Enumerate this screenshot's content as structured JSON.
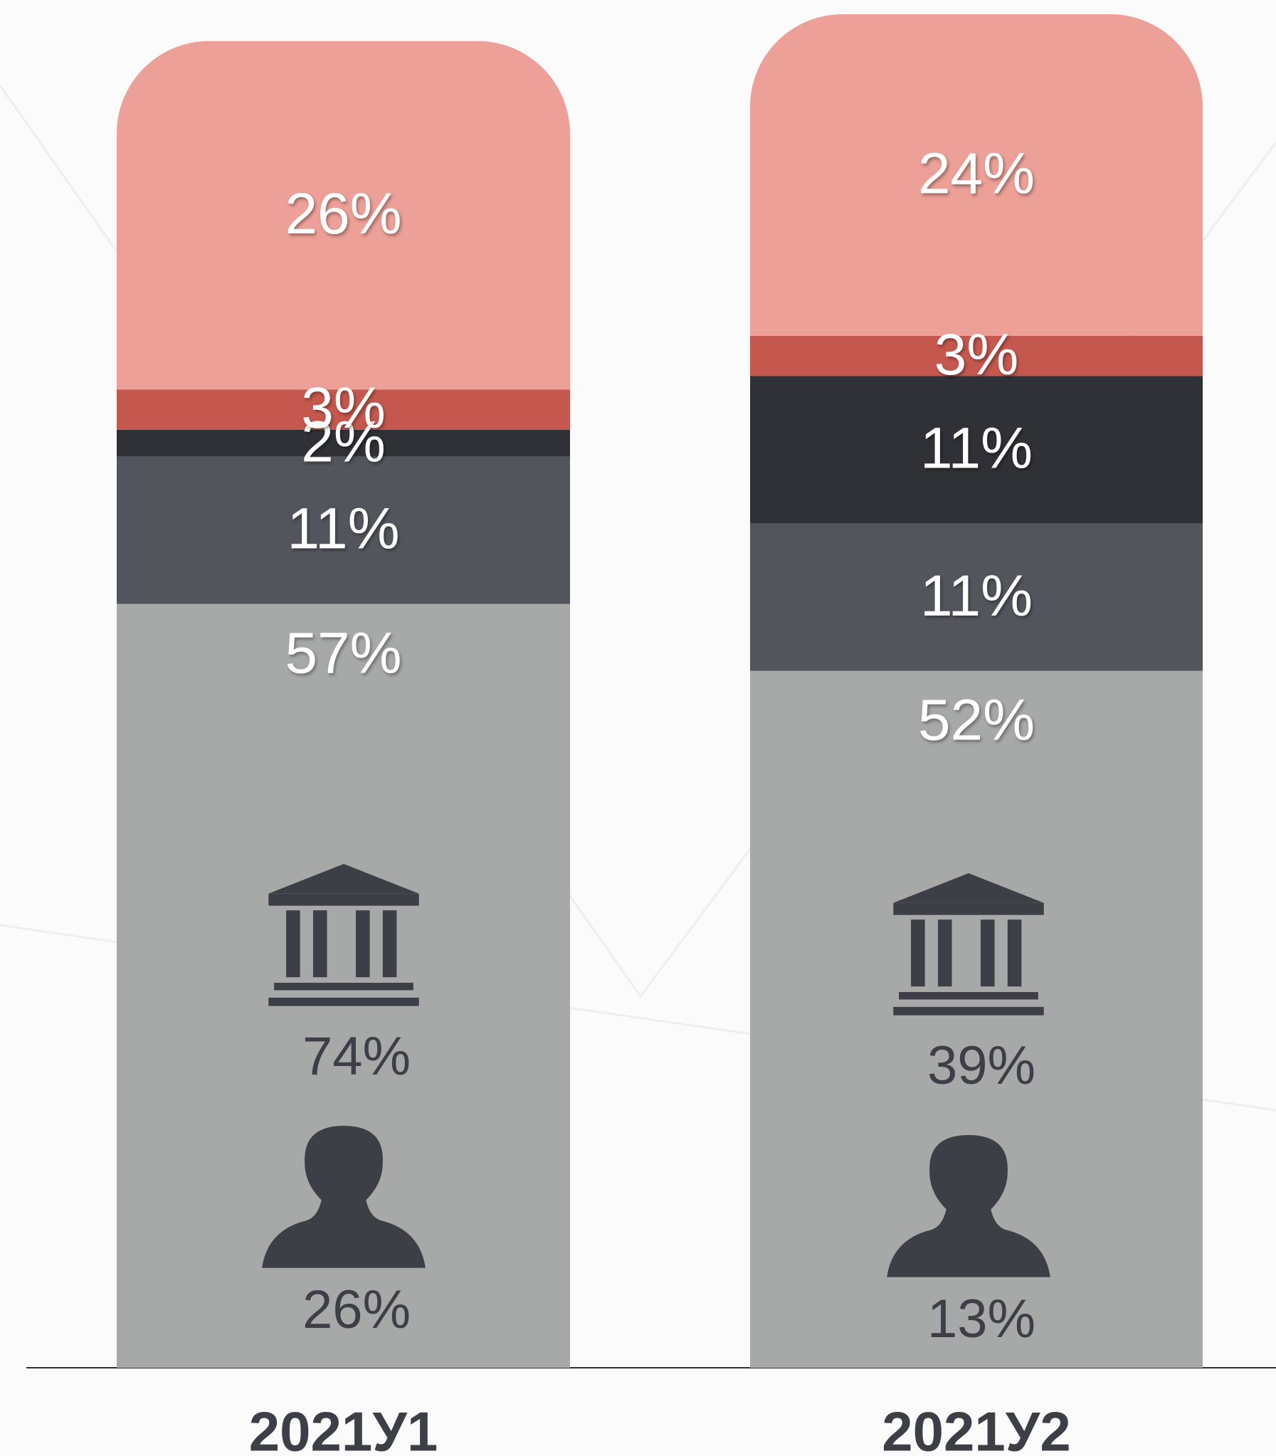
{
  "chart_data": {
    "type": "stacked-bar",
    "categories": [
      "2021У1",
      "2021У2"
    ],
    "series": [
      {
        "color": "#a7a8a8",
        "values": [
          57,
          52
        ],
        "value_labels": [
          "57%",
          "52%"
        ]
      },
      {
        "color": "#52565c",
        "values": [
          11,
          11
        ],
        "value_labels": [
          "11%",
          "11%"
        ]
      },
      {
        "color": "#2f3136",
        "values": [
          2,
          11
        ],
        "value_labels": [
          "2%",
          "11%"
        ]
      },
      {
        "color": "#c5584e",
        "values": [
          3,
          3
        ],
        "value_labels": [
          "3%",
          "3%"
        ]
      },
      {
        "color": "#eca097",
        "values": [
          26,
          24
        ],
        "value_labels": [
          "26%",
          "24%"
        ]
      }
    ],
    "holders": [
      {
        "icon": "institution",
        "values": [
          74,
          39
        ],
        "value_labels": [
          "74%",
          "39%"
        ]
      },
      {
        "icon": "person",
        "values": [
          26,
          13
        ],
        "value_labels": [
          "26%",
          "13%"
        ]
      }
    ],
    "ylim": [
      0,
      101
    ]
  }
}
